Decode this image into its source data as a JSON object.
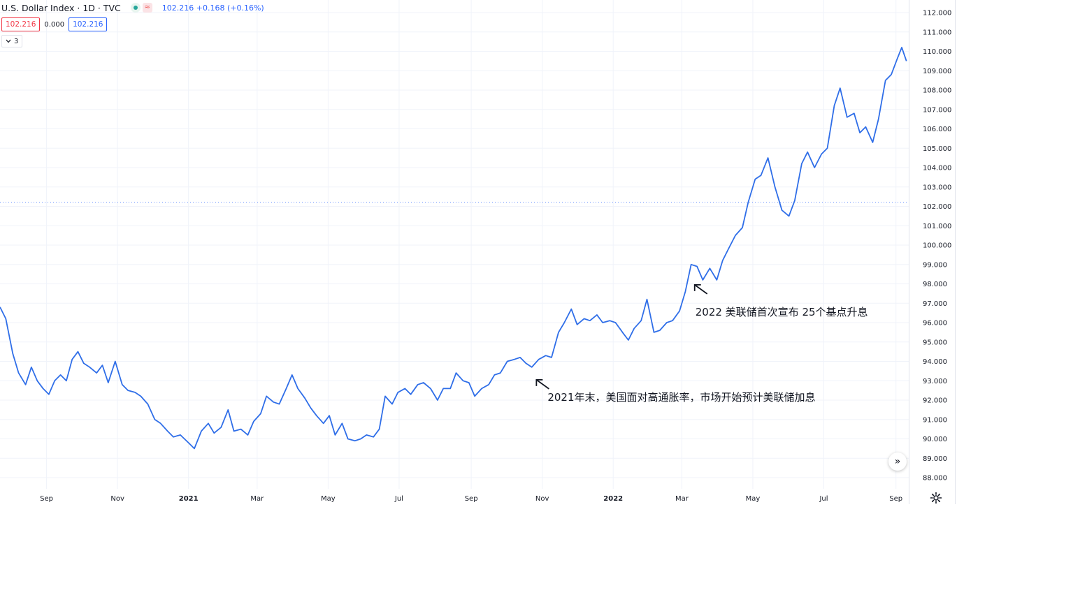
{
  "header": {
    "title": "U.S. Dollar Index · 1D · TVC",
    "quote": "102.216 +0.168 (+0.16%)",
    "wave_icon": "≈"
  },
  "price_boxes": {
    "bid": "102.216",
    "spread": "0.000",
    "ask": "102.216"
  },
  "indicator_toggle": {
    "count": "3"
  },
  "colors": {
    "line": "#2f6ee8",
    "grid": "#f0f3fa",
    "bid": "#f23645",
    "ask": "#2962ff"
  },
  "icons": {
    "scroll": "double-chevron-right-icon",
    "settings": "gear-icon"
  },
  "chart_data": {
    "type": "line",
    "y_ticks": [
      "112.000",
      "111.000",
      "110.000",
      "109.000",
      "108.000",
      "107.000",
      "106.000",
      "105.000",
      "104.000",
      "103.000",
      "102.000",
      "101.000",
      "100.000",
      "99.000",
      "98.000",
      "97.000",
      "96.000",
      "95.000",
      "94.000",
      "93.000",
      "92.000",
      "91.000",
      "90.000",
      "89.000",
      "88.000"
    ],
    "ylim": [
      87.5,
      112.3
    ],
    "x_labels": [
      {
        "label": "Sep",
        "bold": false
      },
      {
        "label": "Nov",
        "bold": false
      },
      {
        "label": "2021",
        "bold": true
      },
      {
        "label": "Mar",
        "bold": false
      },
      {
        "label": "May",
        "bold": false
      },
      {
        "label": "Jul",
        "bold": false
      },
      {
        "label": "Sep",
        "bold": false
      },
      {
        "label": "Nov",
        "bold": false
      },
      {
        "label": "2022",
        "bold": true
      },
      {
        "label": "Mar",
        "bold": false
      },
      {
        "label": "May",
        "bold": false
      },
      {
        "label": "Jul",
        "bold": false
      },
      {
        "label": "Sep",
        "bold": false
      }
    ],
    "xlim": [
      "2020-07-23",
      "2022-09-18"
    ],
    "current_price_line": 102.216,
    "grid": true,
    "series": [
      {
        "points": [
          [
            "2020-07-23",
            96.8
          ],
          [
            "2020-07-28",
            96.2
          ],
          [
            "2020-08-03",
            94.4
          ],
          [
            "2020-08-08",
            93.4
          ],
          [
            "2020-08-14",
            92.8
          ],
          [
            "2020-08-19",
            93.7
          ],
          [
            "2020-08-24",
            93.0
          ],
          [
            "2020-08-29",
            92.6
          ],
          [
            "2020-09-03",
            92.3
          ],
          [
            "2020-09-08",
            93.0
          ],
          [
            "2020-09-13",
            93.3
          ],
          [
            "2020-09-18",
            93.0
          ],
          [
            "2020-09-23",
            94.1
          ],
          [
            "2020-09-28",
            94.5
          ],
          [
            "2020-10-03",
            93.9
          ],
          [
            "2020-10-08",
            93.7
          ],
          [
            "2020-10-14",
            93.4
          ],
          [
            "2020-10-19",
            93.8
          ],
          [
            "2020-10-24",
            92.9
          ],
          [
            "2020-10-30",
            94.0
          ],
          [
            "2020-11-05",
            92.8
          ],
          [
            "2020-11-10",
            92.5
          ],
          [
            "2020-11-16",
            92.4
          ],
          [
            "2020-11-21",
            92.2
          ],
          [
            "2020-11-27",
            91.8
          ],
          [
            "2020-12-03",
            91.0
          ],
          [
            "2020-12-08",
            90.8
          ],
          [
            "2020-12-14",
            90.4
          ],
          [
            "2020-12-19",
            90.1
          ],
          [
            "2020-12-25",
            90.2
          ],
          [
            "2021-01-01",
            89.8
          ],
          [
            "2021-01-06",
            89.5
          ],
          [
            "2021-01-12",
            90.4
          ],
          [
            "2021-01-18",
            90.8
          ],
          [
            "2021-01-23",
            90.3
          ],
          [
            "2021-01-29",
            90.6
          ],
          [
            "2021-02-04",
            91.5
          ],
          [
            "2021-02-09",
            90.4
          ],
          [
            "2021-02-15",
            90.5
          ],
          [
            "2021-02-21",
            90.2
          ],
          [
            "2021-02-26",
            90.9
          ],
          [
            "2021-03-04",
            91.3
          ],
          [
            "2021-03-09",
            92.2
          ],
          [
            "2021-03-15",
            91.9
          ],
          [
            "2021-03-20",
            91.8
          ],
          [
            "2021-03-26",
            92.6
          ],
          [
            "2021-03-31",
            93.3
          ],
          [
            "2021-04-05",
            92.6
          ],
          [
            "2021-04-11",
            92.1
          ],
          [
            "2021-04-16",
            91.6
          ],
          [
            "2021-04-21",
            91.2
          ],
          [
            "2021-04-27",
            90.8
          ],
          [
            "2021-05-02",
            91.2
          ],
          [
            "2021-05-07",
            90.2
          ],
          [
            "2021-05-13",
            90.8
          ],
          [
            "2021-05-18",
            90.0
          ],
          [
            "2021-05-24",
            89.9
          ],
          [
            "2021-05-29",
            90.0
          ],
          [
            "2021-06-03",
            90.2
          ],
          [
            "2021-06-09",
            90.1
          ],
          [
            "2021-06-14",
            90.5
          ],
          [
            "2021-06-19",
            92.2
          ],
          [
            "2021-06-25",
            91.8
          ],
          [
            "2021-06-30",
            92.4
          ],
          [
            "2021-07-06",
            92.6
          ],
          [
            "2021-07-11",
            92.3
          ],
          [
            "2021-07-17",
            92.8
          ],
          [
            "2021-07-22",
            92.9
          ],
          [
            "2021-07-28",
            92.6
          ],
          [
            "2021-08-03",
            92.0
          ],
          [
            "2021-08-08",
            92.6
          ],
          [
            "2021-08-14",
            92.6
          ],
          [
            "2021-08-19",
            93.4
          ],
          [
            "2021-08-25",
            93.0
          ],
          [
            "2021-08-30",
            92.9
          ],
          [
            "2021-09-04",
            92.2
          ],
          [
            "2021-09-10",
            92.6
          ],
          [
            "2021-09-16",
            92.8
          ],
          [
            "2021-09-21",
            93.3
          ],
          [
            "2021-09-26",
            93.4
          ],
          [
            "2021-10-02",
            94.0
          ],
          [
            "2021-10-08",
            94.1
          ],
          [
            "2021-10-13",
            94.2
          ],
          [
            "2021-10-18",
            93.9
          ],
          [
            "2021-10-23",
            93.7
          ],
          [
            "2021-10-29",
            94.1
          ],
          [
            "2021-11-04",
            94.3
          ],
          [
            "2021-11-09",
            94.2
          ],
          [
            "2021-11-15",
            95.5
          ],
          [
            "2021-11-20",
            96.0
          ],
          [
            "2021-11-26",
            96.7
          ],
          [
            "2021-12-01",
            95.9
          ],
          [
            "2021-12-07",
            96.2
          ],
          [
            "2021-12-12",
            96.1
          ],
          [
            "2021-12-18",
            96.4
          ],
          [
            "2021-12-23",
            96.0
          ],
          [
            "2021-12-29",
            96.1
          ],
          [
            "2022-01-03",
            96.0
          ],
          [
            "2022-01-09",
            95.5
          ],
          [
            "2022-01-14",
            95.1
          ],
          [
            "2022-01-19",
            95.7
          ],
          [
            "2022-01-25",
            96.1
          ],
          [
            "2022-01-30",
            97.2
          ],
          [
            "2022-02-05",
            95.5
          ],
          [
            "2022-02-10",
            95.6
          ],
          [
            "2022-02-16",
            96.0
          ],
          [
            "2022-02-21",
            96.1
          ],
          [
            "2022-02-27",
            96.6
          ],
          [
            "2022-03-04",
            97.6
          ],
          [
            "2022-03-09",
            99.0
          ],
          [
            "2022-03-14",
            98.9
          ],
          [
            "2022-03-19",
            98.2
          ],
          [
            "2022-03-25",
            98.8
          ],
          [
            "2022-03-31",
            98.2
          ],
          [
            "2022-04-05",
            99.2
          ],
          [
            "2022-04-10",
            99.8
          ],
          [
            "2022-04-16",
            100.5
          ],
          [
            "2022-04-22",
            100.9
          ],
          [
            "2022-04-27",
            102.2
          ],
          [
            "2022-05-03",
            103.4
          ],
          [
            "2022-05-08",
            103.6
          ],
          [
            "2022-05-14",
            104.5
          ],
          [
            "2022-05-20",
            103.0
          ],
          [
            "2022-05-26",
            101.8
          ],
          [
            "2022-06-01",
            101.5
          ],
          [
            "2022-06-06",
            102.3
          ],
          [
            "2022-06-12",
            104.2
          ],
          [
            "2022-06-17",
            104.8
          ],
          [
            "2022-06-23",
            104.0
          ],
          [
            "2022-06-29",
            104.7
          ],
          [
            "2022-07-04",
            105.0
          ],
          [
            "2022-07-10",
            107.2
          ],
          [
            "2022-07-15",
            108.1
          ],
          [
            "2022-07-21",
            106.6
          ],
          [
            "2022-07-27",
            106.8
          ],
          [
            "2022-08-01",
            105.8
          ],
          [
            "2022-08-06",
            106.1
          ],
          [
            "2022-08-12",
            105.3
          ],
          [
            "2022-08-17",
            106.5
          ],
          [
            "2022-08-23",
            108.5
          ],
          [
            "2022-08-28",
            108.8
          ],
          [
            "2022-09-02",
            109.6
          ],
          [
            "2022-09-06",
            110.2
          ],
          [
            "2022-09-10",
            109.5
          ]
        ]
      }
    ],
    "annotations": [
      {
        "text": "2022 美联储首次宣布 25个基点升息",
        "date": "2022-03-12",
        "value": 97.95
      },
      {
        "text": "2021年末，美国面对高通胀率，市场开始预计美联储加息",
        "date": "2021-10-27",
        "value": 93.05
      }
    ]
  }
}
